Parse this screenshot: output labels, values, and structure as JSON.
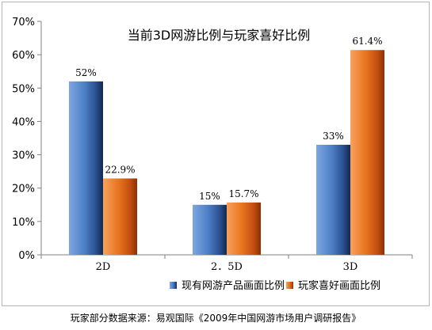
{
  "chart_data": {
    "type": "bar",
    "title": "当前3D网游比例与玩家喜好比例",
    "categories": [
      "2D",
      "2.5D",
      "3D"
    ],
    "series": [
      {
        "name": "现有网游产品画面比例",
        "values": [
          52,
          15,
          33
        ],
        "labels": [
          "52%",
          "15%",
          "33%"
        ],
        "color": "#3f6fb5"
      },
      {
        "name": "玩家喜好画面比例",
        "values": [
          22.9,
          15.7,
          61.4
        ],
        "labels": [
          "22.9%",
          "15.7%",
          "61.4%"
        ],
        "color": "#e0661b"
      }
    ],
    "xlabel": "",
    "ylabel": "",
    "ylim": [
      0,
      70
    ],
    "yticks": [
      0,
      10,
      20,
      30,
      40,
      50,
      60,
      70
    ],
    "ytick_labels": [
      "0%",
      "10%",
      "20%",
      "30%",
      "40%",
      "50%",
      "60%",
      "70%"
    ],
    "xtick_labels": [
      "2D",
      "2．5D",
      "3D"
    ],
    "grid": false,
    "legend_placement": "bottom-right"
  },
  "source_note": "玩家部分数据来源：易观国际《2009年中国网游市场用户调研报告》"
}
